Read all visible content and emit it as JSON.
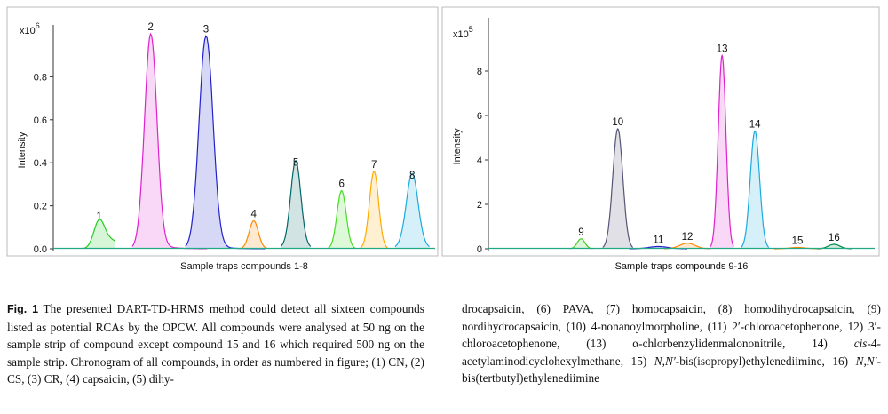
{
  "chart_data": [
    {
      "type": "line",
      "xlabel": "Sample traps compounds 1-8",
      "ylabel": "Intensity",
      "scale_label": "x10",
      "scale_exponent": "6",
      "ylim": [
        0,
        1.0
      ],
      "yticks": [
        "0.0",
        "0.2",
        "0.4",
        "0.6",
        "0.8"
      ],
      "xlim": [
        0,
        100
      ],
      "grid": false,
      "peaks": [
        {
          "label": "1",
          "x": 12,
          "y": 0.12,
          "width": 1.4,
          "color": "#22cc22",
          "shoulder": {
            "x": 15,
            "y": 0.04
          }
        },
        {
          "label": "2",
          "x": 25.5,
          "y": 1.0,
          "width": 1.6,
          "color": "#dd22cc",
          "tail": 0.04
        },
        {
          "label": "3",
          "x": 40,
          "y": 0.99,
          "width": 1.8,
          "color": "#2222cc",
          "tail": 0.03
        },
        {
          "label": "4",
          "x": 52.5,
          "y": 0.13,
          "width": 1.2,
          "color": "#ff8800"
        },
        {
          "label": "5",
          "x": 63.5,
          "y": 0.37,
          "width": 1.3,
          "color": "#006666",
          "shoulder": {
            "x": 63.5,
            "y": 0.04
          }
        },
        {
          "label": "6",
          "x": 75.5,
          "y": 0.27,
          "width": 1.2,
          "color": "#44dd22"
        },
        {
          "label": "7",
          "x": 84,
          "y": 0.36,
          "width": 1.2,
          "color": "#ffaa00"
        },
        {
          "label": "8",
          "x": 94,
          "y": 0.31,
          "width": 1.5,
          "color": "#1aaadd",
          "shoulder": {
            "x": 94,
            "y": 0.04
          }
        }
      ]
    },
    {
      "type": "line",
      "xlabel": "Sample traps compounds 9-16",
      "ylabel": "Intensity",
      "scale_label": "x10",
      "scale_exponent": "5",
      "ylim": [
        0,
        10
      ],
      "yticks": [
        "0",
        "2",
        "4",
        "6",
        "8"
      ],
      "xlim": [
        0,
        100
      ],
      "grid": false,
      "peaks": [
        {
          "label": "9",
          "x": 24,
          "y": 0.45,
          "width": 1.0,
          "color": "#44cc22"
        },
        {
          "label": "10",
          "x": 33.5,
          "y": 5.4,
          "width": 1.3,
          "color": "#555577"
        },
        {
          "label": "11",
          "x": 44,
          "y": 0.1,
          "width": 2.5,
          "color": "#2222cc"
        },
        {
          "label": "12",
          "x": 51.5,
          "y": 0.25,
          "width": 2.0,
          "color": "#ff8800"
        },
        {
          "label": "13",
          "x": 60.5,
          "y": 8.7,
          "width": 1.0,
          "color": "#dd22cc"
        },
        {
          "label": "14",
          "x": 69,
          "y": 5.3,
          "width": 1.2,
          "color": "#1aaadd"
        },
        {
          "label": "15",
          "x": 80,
          "y": 0.06,
          "width": 2.0,
          "color": "#ff8800"
        },
        {
          "label": "16",
          "x": 89.5,
          "y": 0.2,
          "width": 1.5,
          "color": "#008844"
        }
      ]
    }
  ],
  "caption": {
    "fig_label": "Fig. 1",
    "left_text": " The presented DART-TD-HRMS method could detect all sixteen compounds listed as potential RCAs by the OPCW. All compounds were analysed at 50 ng on the sample strip of compound except compound 15 and 16 which required 500 ng on the sample strip. Chronogram of all compounds, in order as numbered in figure; (1) CN, (2) CS, (3) CR, (4) capsaicin, (5) dihy-",
    "right_a": "drocapsaicin, (6) PAVA, (7) homocapsaicin, (8) homodihydrocapsaicin, (9) nordihydrocapsaicin, (10) 4-nonanoylmorpholine, (11) 2′-chloroacetophenone, 12) 3′-chloroacetophenone, (13) α-chlorbenzylidenmalononitrile, 14) ",
    "right_cis": "cis",
    "right_b": "-4-acetylaminodicyclohexylmethane, 15) ",
    "right_nn1": "N,N′",
    "right_c": "-bis(isopropyl)ethylenediimine, 16) ",
    "right_nn2": "N,N′",
    "right_d": "-bis(tertbutyl)ethylenediimine"
  }
}
